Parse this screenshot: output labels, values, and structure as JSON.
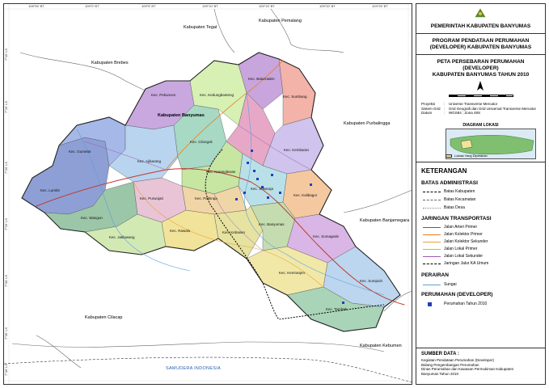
{
  "header": {
    "gov": "PEMERINTAH KABUPATEN BANYUMAS",
    "program_line1": "PROGRAM PENDATAAN PERUMAHAN",
    "program_line2": "(DEVELOPER) KABUPATEN BANYUMAS",
    "map_title_line1": "PETA PERSEBARAN PERUMAHAN",
    "map_title_line2": "(DEVELOPER)",
    "map_title_line3": "KABUPATEN BANYUMAS TAHUN 2010"
  },
  "projection": {
    "rows": [
      {
        "key": "Proyeksi",
        "val": "Universe Transverse Mercator"
      },
      {
        "key": "Sistem Grid",
        "val": "Grid Geografi dan Grid Universal Transverse Mercator"
      },
      {
        "key": "Datum",
        "val": "WGS84 ; Zona 49S"
      }
    ]
  },
  "inset": {
    "title": "DIAGRAM LOKASI",
    "note": "Lokasi Yang Dipetakan"
  },
  "legend": {
    "title": "KETERANGAN",
    "admin": {
      "title": "BATAS ADMINISTRASI",
      "items": [
        "Batas Kabupaten",
        "Batas Kecamatan",
        "Batas Desa"
      ]
    },
    "transport": {
      "title": "JARINGAN TRANSPORTASI",
      "items": [
        "Jalan Arteri Primer",
        "Jalan Kolektor Primer",
        "Jalan Kolektor Sekunder",
        "Jalan Lokal Primer",
        "Jalan Lokal Sekunder",
        "Jaringan Jalur KA Umum"
      ]
    },
    "water": {
      "title": "PERAIRAN",
      "items": [
        "Sungai"
      ]
    },
    "housing": {
      "title": "PERUMAHAN (DEVELOPER)",
      "items": [
        "Perumahan Tahun 2010"
      ]
    },
    "colors": {
      "kabupaten": "#000000",
      "arteri": "#c0392b",
      "kolektor_primer": "#e67e22",
      "kolektor_sekunder": "#e8a33d",
      "lokal_primer": "#b5c23a",
      "lokal_sekunder": "#9b59b6",
      "ka": "#000000",
      "sungai": "#5aa0d8",
      "perumahan": "#1f3fbf"
    }
  },
  "source": {
    "title": "SUMBER DATA :",
    "lines": [
      "Kegiatan Pendataan Perumahan (Developer)",
      "Bidang Pengembangan Perumahan",
      "Dinas Perumahan dan Kawasan Permukiman Kabupaten",
      "Banyumas Tahun 2010"
    ]
  },
  "map": {
    "neighbors": {
      "tegal": "Kabupaten Tegal",
      "pemalang": "Kabupaten Pemalang",
      "brebes": "Kabupaten Brebes",
      "purbalingga": "Kabupaten Purbalingga",
      "banjarnegara": "Kabupaten Banjarnegara",
      "cilacap": "Kabupaten Cilacap",
      "kebumen": "Kabupaten Kebumen",
      "banyumas_main": "Kabupaten Banyumas"
    },
    "sea": "SAMUDERA INDONESIA",
    "kecamatan": [
      "Kec. Lumbir",
      "Kec. Wangon",
      "Kec. Gumelar",
      "Kec. Pekuncen",
      "Kec. Ajibarang",
      "Kec. Cilongok",
      "Kec. Karanglewas",
      "Kec. Baturraden",
      "Kec. Kedungbanteng",
      "Kec. Sumbang",
      "Kec. Kembaran",
      "Kec. Purwojati",
      "Kec. Rawalo",
      "Kec. Patikraja",
      "Kec. Kebasen",
      "Kec. Sokaraja",
      "Kec. Kalibagor",
      "Kec. Banyumas",
      "Kec. Somagede",
      "Kec. Jatilawang",
      "Kec. Tambak",
      "Kec. Sumpiuh",
      "Kec. Kemranjen"
    ],
    "grid_top": [
      "108°55' BT",
      "109°0' BT",
      "109°5' BT",
      "109°10' BT",
      "109°15' BT",
      "109°20' BT",
      "109°25' BT"
    ],
    "grid_left": [
      "7°10' LS",
      "7°15' LS",
      "7°20' LS",
      "7°25' LS",
      "7°30' LS",
      "7°35' LS",
      "7°40' LS"
    ]
  }
}
